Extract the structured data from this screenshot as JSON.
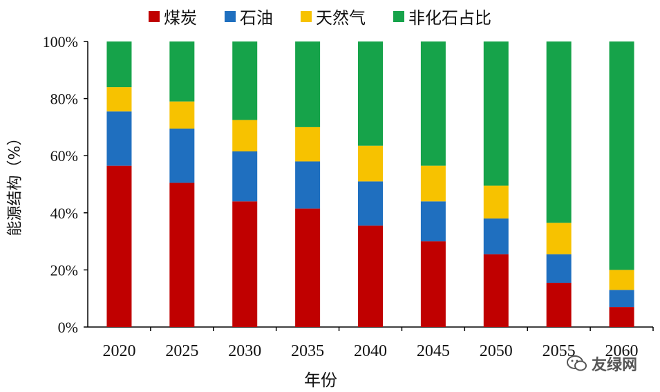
{
  "chart_data": {
    "type": "bar",
    "stacked": true,
    "categories": [
      "2020",
      "2025",
      "2030",
      "2035",
      "2040",
      "2045",
      "2050",
      "2055",
      "2060"
    ],
    "series": [
      {
        "name": "煤炭",
        "color": "#c00000",
        "values": [
          56.5,
          50.5,
          44,
          41.5,
          35.5,
          30,
          25.5,
          15.5,
          7
        ]
      },
      {
        "name": "石油",
        "color": "#1f6fbf",
        "values": [
          19,
          19,
          17.5,
          16.5,
          15.5,
          14,
          12.5,
          10,
          6
        ]
      },
      {
        "name": "天然气",
        "color": "#f7c200",
        "values": [
          8.5,
          9.5,
          11,
          12,
          12.5,
          12.5,
          11.5,
          11,
          7
        ]
      },
      {
        "name": "非化石占比",
        "color": "#16a34a",
        "values": [
          16,
          21,
          27.5,
          30,
          36.5,
          43.5,
          50.5,
          63.5,
          80
        ]
      }
    ],
    "xlabel": "年份",
    "ylabel": "能源结构（%）",
    "ylim": [
      0,
      100
    ],
    "yticks": [
      "0%",
      "20%",
      "40%",
      "60%",
      "80%",
      "100%"
    ],
    "grid": false,
    "legend": "top"
  },
  "watermark": {
    "text": "友绿网",
    "icon": "wechat-icon"
  }
}
